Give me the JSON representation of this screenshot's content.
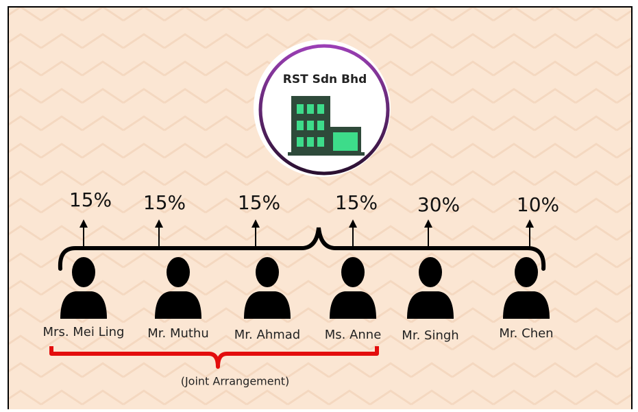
{
  "company": {
    "name": "RST Sdn Bhd"
  },
  "shareholders": [
    {
      "name": "Mrs. Mei Ling",
      "share": "15%"
    },
    {
      "name": "Mr. Muthu",
      "share": "15%"
    },
    {
      "name": "Mr. Ahmad",
      "share": "15%"
    },
    {
      "name": "Ms. Anne",
      "share": "15%"
    },
    {
      "name": "Mr. Singh",
      "share": "30%"
    },
    {
      "name": "Mr. Chen",
      "share": "10%"
    }
  ],
  "joint_arrangement": {
    "label": "(Joint Arrangement)"
  }
}
